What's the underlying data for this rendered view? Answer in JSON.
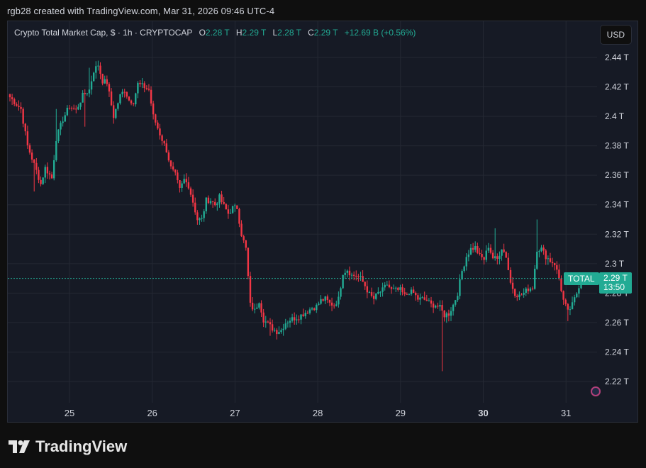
{
  "header": {
    "text": "rgb28 created with TradingView.com, Mar 31, 2026 09:46 UTC-4"
  },
  "legend": {
    "symbol": "Crypto Total Market Cap, $ · 1h · CRYPTOCAP",
    "o_label": "O",
    "o_value": "2.28 T",
    "h_label": "H",
    "h_value": "2.29 T",
    "l_label": "L",
    "l_value": "2.28 T",
    "c_label": "C",
    "c_value": "2.29 T",
    "change": "+12.69 B (+0.56%)"
  },
  "currency_button": "USD",
  "price_tag": {
    "name": "TOTAL",
    "price": "2.29 T",
    "countdown": "13:50"
  },
  "footer": {
    "brand": "TradingView"
  },
  "colors": {
    "up": "#22ab94",
    "down": "#f23645",
    "background": "#161a25",
    "grid": "#242833",
    "text": "#d1d4dc"
  },
  "chart_data": {
    "type": "candlestick",
    "y_unit": "T",
    "ylim": [
      2.21,
      2.455
    ],
    "y_ticks": [
      "2.22 T",
      "2.24 T",
      "2.26 T",
      "2.28 T",
      "2.3 T",
      "2.32 T",
      "2.34 T",
      "2.36 T",
      "2.38 T",
      "2.4 T",
      "2.42 T",
      "2.44 T"
    ],
    "y_tick_values": [
      2.22,
      2.24,
      2.26,
      2.28,
      2.3,
      2.32,
      2.34,
      2.36,
      2.38,
      2.4,
      2.42,
      2.44
    ],
    "x_ticks": [
      "25",
      "26",
      "27",
      "28",
      "29",
      "30",
      "31"
    ],
    "x_bold": [
      false,
      false,
      false,
      false,
      false,
      true,
      false
    ],
    "last_price": 2.29,
    "anchors": [
      [
        0,
        2.413
      ],
      [
        5,
        2.405
      ],
      [
        8,
        2.38
      ],
      [
        12,
        2.363
      ],
      [
        14,
        2.354
      ],
      [
        16,
        2.365
      ],
      [
        19,
        2.358
      ],
      [
        21,
        2.385
      ],
      [
        24,
        2.398
      ],
      [
        27,
        2.407
      ],
      [
        30,
        2.404
      ],
      [
        33,
        2.414
      ],
      [
        36,
        2.418
      ],
      [
        38,
        2.431
      ],
      [
        40,
        2.435
      ],
      [
        42,
        2.424
      ],
      [
        44,
        2.423
      ],
      [
        47,
        2.4
      ],
      [
        50,
        2.414
      ],
      [
        52,
        2.418
      ],
      [
        54,
        2.411
      ],
      [
        56,
        2.41
      ],
      [
        58,
        2.422
      ],
      [
        61,
        2.42
      ],
      [
        63,
        2.418
      ],
      [
        65,
        2.4
      ],
      [
        68,
        2.388
      ],
      [
        71,
        2.377
      ],
      [
        73,
        2.365
      ],
      [
        75,
        2.36
      ],
      [
        77,
        2.35
      ],
      [
        79,
        2.357
      ],
      [
        81,
        2.353
      ],
      [
        83,
        2.342
      ],
      [
        85,
        2.33
      ],
      [
        87,
        2.33
      ],
      [
        89,
        2.343
      ],
      [
        91,
        2.343
      ],
      [
        93,
        2.34
      ],
      [
        95,
        2.345
      ],
      [
        97,
        2.339
      ],
      [
        99,
        2.334
      ],
      [
        101,
        2.338
      ],
      [
        103,
        2.338
      ],
      [
        105,
        2.32
      ],
      [
        107,
        2.31
      ],
      [
        109,
        2.272
      ],
      [
        111,
        2.268
      ],
      [
        113,
        2.275
      ],
      [
        115,
        2.262
      ],
      [
        117,
        2.259
      ],
      [
        119,
        2.256
      ],
      [
        121,
        2.254
      ],
      [
        123,
        2.255
      ],
      [
        125,
        2.26
      ],
      [
        127,
        2.262
      ],
      [
        129,
        2.263
      ],
      [
        131,
        2.264
      ],
      [
        133,
        2.266
      ],
      [
        135,
        2.268
      ],
      [
        137,
        2.27
      ],
      [
        139,
        2.271
      ],
      [
        141,
        2.275
      ],
      [
        143,
        2.276
      ],
      [
        145,
        2.273
      ],
      [
        147,
        2.272
      ],
      [
        149,
        2.276
      ],
      [
        151,
        2.294
      ],
      [
        153,
        2.296
      ],
      [
        155,
        2.292
      ],
      [
        157,
        2.292
      ],
      [
        159,
        2.29
      ],
      [
        161,
        2.285
      ],
      [
        163,
        2.279
      ],
      [
        165,
        2.276
      ],
      [
        167,
        2.28
      ],
      [
        169,
        2.282
      ],
      [
        171,
        2.286
      ],
      [
        173,
        2.282
      ],
      [
        175,
        2.282
      ],
      [
        177,
        2.282
      ],
      [
        179,
        2.278
      ],
      [
        181,
        2.281
      ],
      [
        183,
        2.28
      ],
      [
        185,
        2.276
      ],
      [
        187,
        2.276
      ],
      [
        189,
        2.275
      ],
      [
        191,
        2.272
      ],
      [
        193,
        2.272
      ],
      [
        195,
        2.27
      ],
      [
        197,
        2.265
      ],
      [
        199,
        2.266
      ],
      [
        201,
        2.272
      ],
      [
        203,
        2.28
      ],
      [
        205,
        2.295
      ],
      [
        207,
        2.305
      ],
      [
        209,
        2.31
      ],
      [
        211,
        2.311
      ],
      [
        213,
        2.305
      ],
      [
        215,
        2.303
      ],
      [
        217,
        2.312
      ],
      [
        219,
        2.304
      ],
      [
        221,
        2.303
      ],
      [
        223,
        2.311
      ],
      [
        225,
        2.305
      ],
      [
        227,
        2.287
      ],
      [
        229,
        2.28
      ],
      [
        231,
        2.278
      ],
      [
        233,
        2.28
      ],
      [
        235,
        2.283
      ],
      [
        237,
        2.284
      ],
      [
        239,
        2.31
      ],
      [
        241,
        2.31
      ],
      [
        243,
        2.305
      ],
      [
        245,
        2.302
      ],
      [
        247,
        2.3
      ],
      [
        249,
        2.29
      ],
      [
        251,
        2.275
      ],
      [
        253,
        2.267
      ],
      [
        255,
        2.272
      ],
      [
        257,
        2.28
      ],
      [
        259,
        2.29
      ]
    ],
    "spikes": [
      {
        "i": 196,
        "low": 2.227
      },
      {
        "i": 239,
        "high": 2.33
      },
      {
        "i": 253,
        "low": 2.261
      },
      {
        "i": 34,
        "low": 2.393
      },
      {
        "i": 11,
        "low": 2.349
      },
      {
        "i": 118,
        "low": 2.251
      },
      {
        "i": 220,
        "high": 2.324
      },
      {
        "i": 21,
        "high": 2.405
      },
      {
        "i": 36,
        "high": 2.433
      },
      {
        "i": 47,
        "low": 2.395
      }
    ]
  }
}
